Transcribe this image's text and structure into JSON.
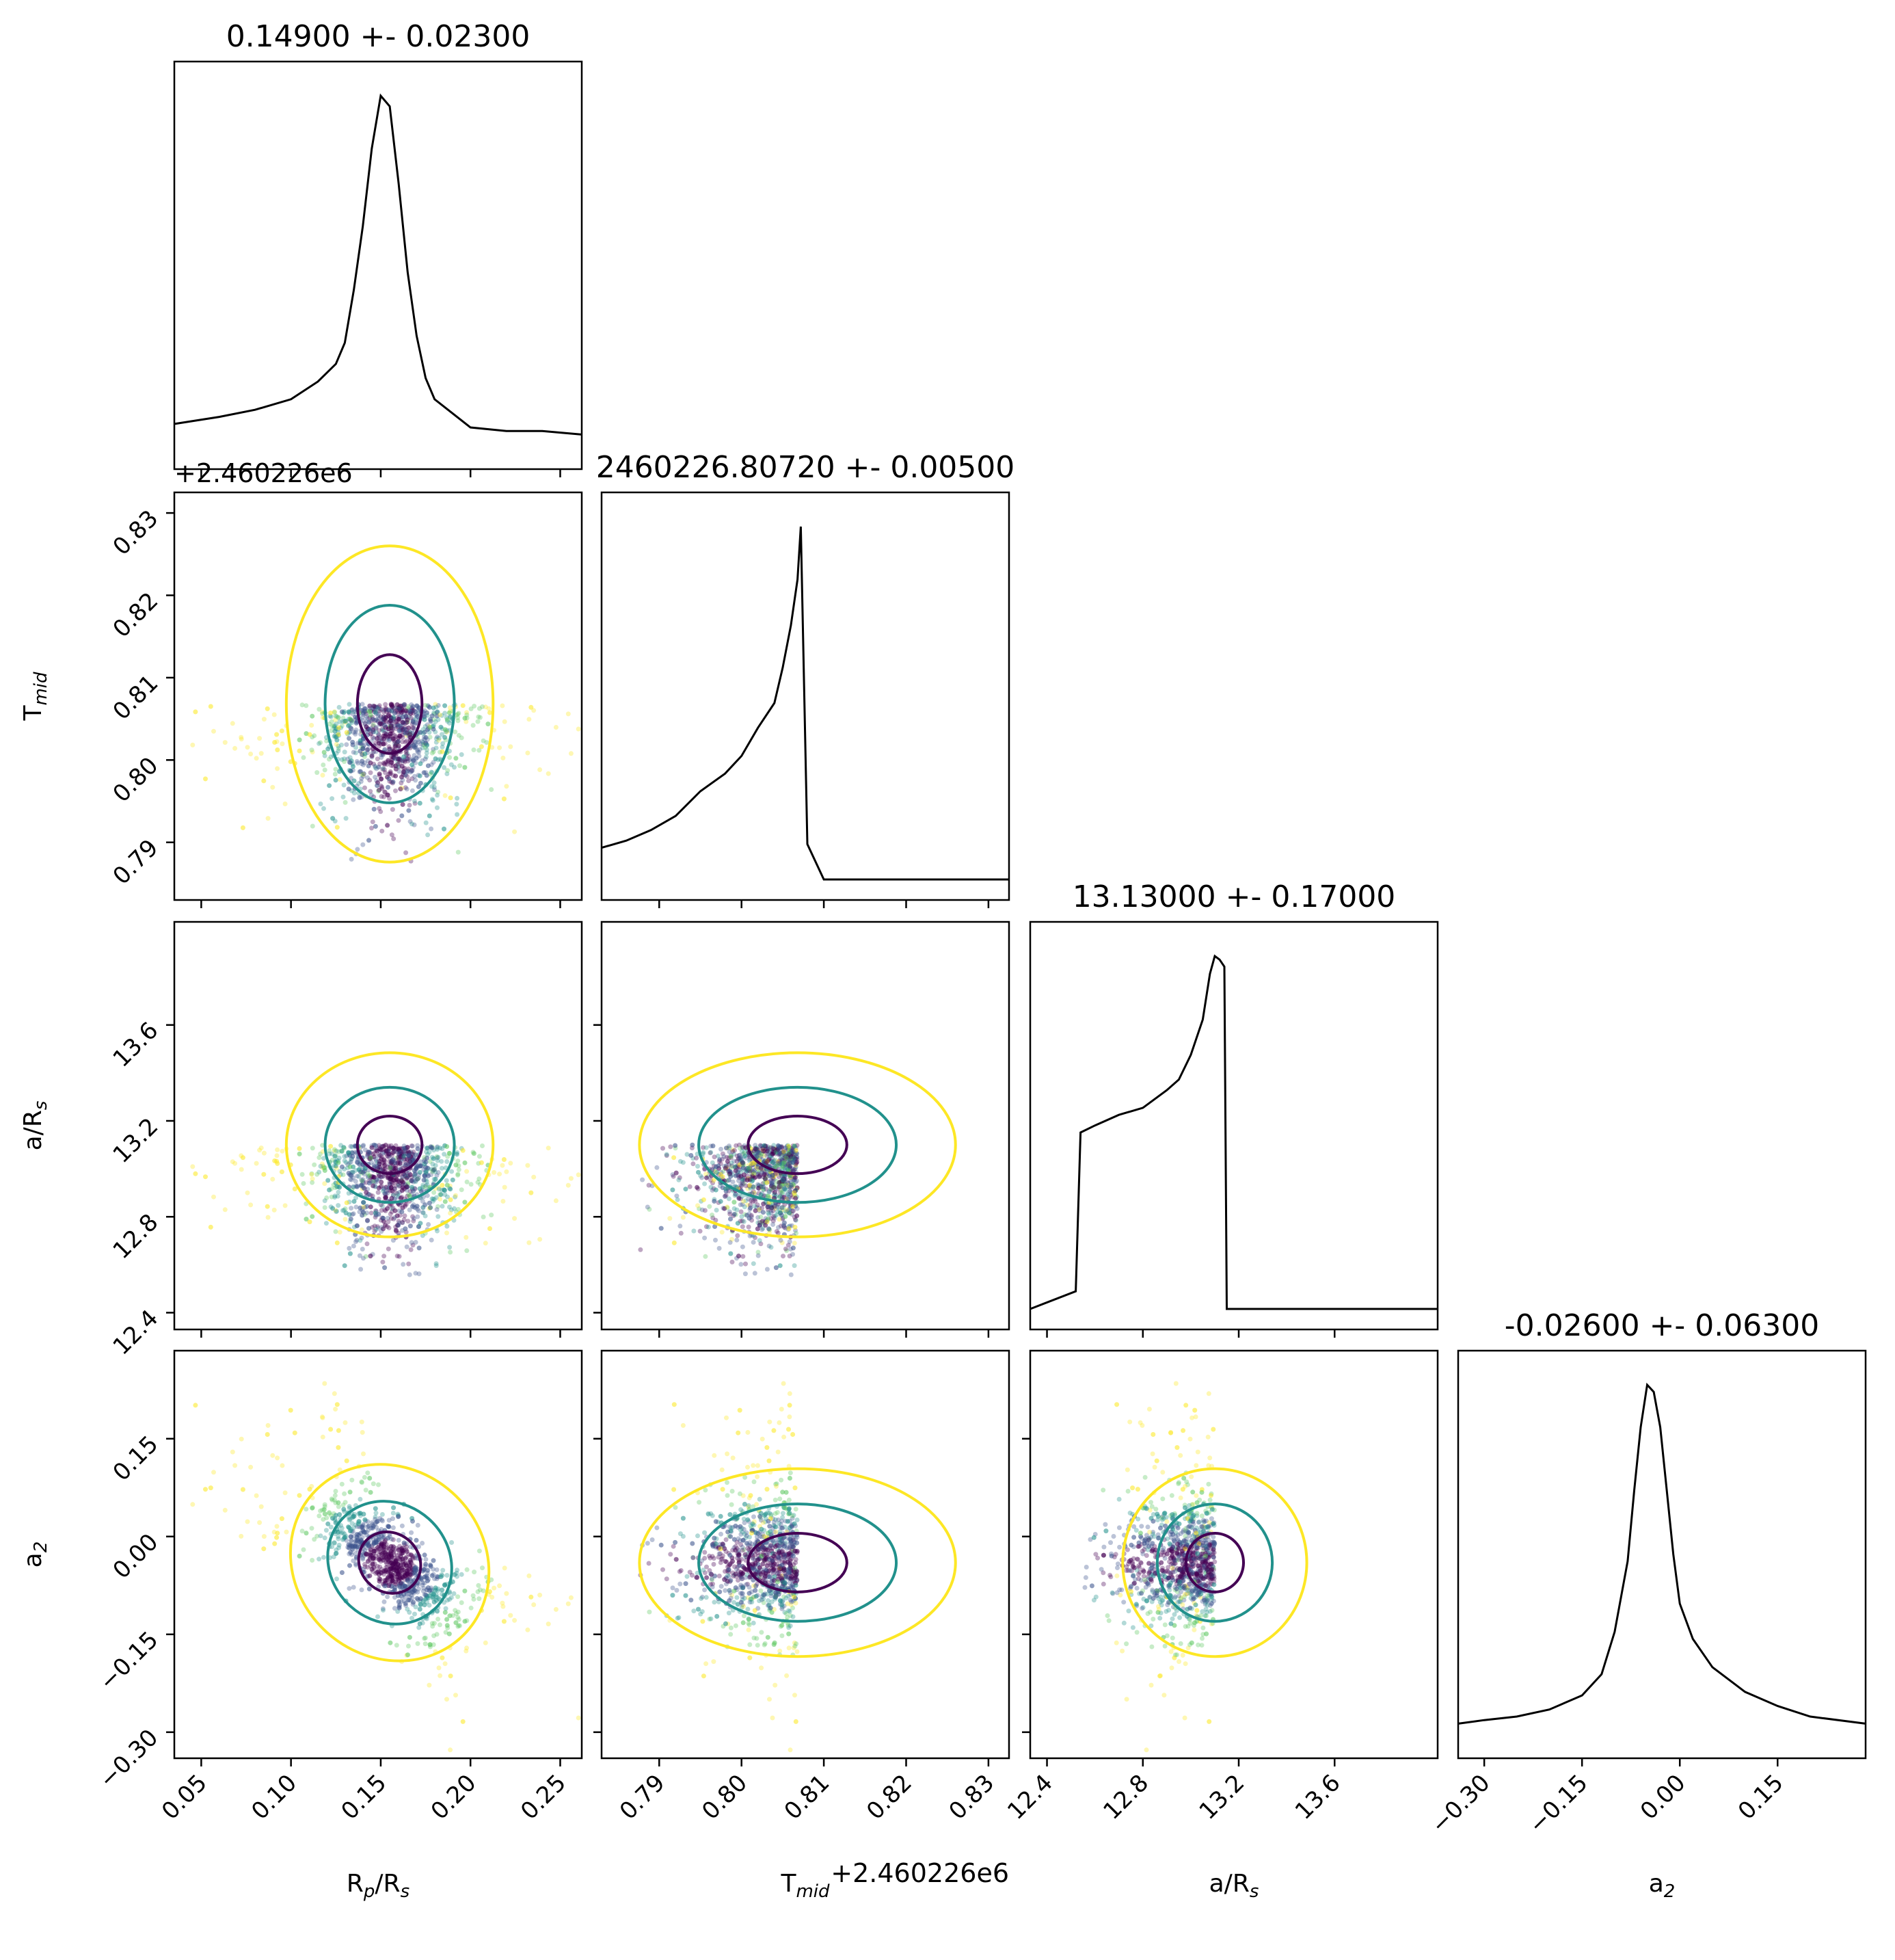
{
  "chart_data": {
    "type": "corner",
    "parameters": [
      {
        "symbol": "R",
        "sub": "p",
        "suffix": "/R",
        "suffix_sub": "s",
        "title": "0.14900 +- 0.02300",
        "range": [
          0.035,
          0.262
        ],
        "ticks": [
          "0.05",
          "0.10",
          "0.15",
          "0.20",
          "0.25"
        ],
        "tick_values": [
          0.05,
          0.1,
          0.15,
          0.2,
          0.25
        ]
      },
      {
        "symbol": "T",
        "sub": "mid",
        "suffix": "",
        "suffix_sub": "",
        "title": "2460226.80720 +- 0.00500",
        "range": [
          0.783,
          0.8325
        ],
        "ticks": [
          "0.79",
          "0.80",
          "0.81",
          "0.82",
          "0.83"
        ],
        "tick_values": [
          0.79,
          0.8,
          0.81,
          0.82,
          0.83
        ],
        "offset_label": "+2.460226e6"
      },
      {
        "symbol": "a/R",
        "sub": "s",
        "suffix": "",
        "suffix_sub": "",
        "title": "13.13000 +- 0.17000",
        "range": [
          12.33,
          14.03
        ],
        "ticks": [
          "12.4",
          "12.8",
          "13.2",
          "13.6"
        ],
        "tick_values": [
          12.4,
          12.8,
          13.2,
          13.6
        ]
      },
      {
        "symbol": "a",
        "sub": "2",
        "suffix": "",
        "suffix_sub": "",
        "title": "-0.02600 +- 0.06300",
        "range": [
          -0.34,
          0.285
        ],
        "ticks": [
          "−0.30",
          "−0.15",
          "0.00",
          "0.15"
        ],
        "tick_values": [
          -0.3,
          -0.15,
          0.0,
          0.15
        ]
      }
    ],
    "histograms": [
      {
        "centers": [
          0.035,
          0.06,
          0.08,
          0.1,
          0.115,
          0.125,
          0.13,
          0.135,
          0.14,
          0.145,
          0.15,
          0.155,
          0.16,
          0.165,
          0.17,
          0.175,
          0.18,
          0.19,
          0.2,
          0.22,
          0.24,
          0.262
        ],
        "heights": [
          0.07,
          0.09,
          0.11,
          0.14,
          0.19,
          0.24,
          0.3,
          0.45,
          0.63,
          0.85,
          1.0,
          0.97,
          0.75,
          0.5,
          0.32,
          0.2,
          0.14,
          0.1,
          0.06,
          0.05,
          0.05,
          0.04
        ]
      },
      {
        "centers": [
          0.783,
          0.786,
          0.789,
          0.792,
          0.795,
          0.798,
          0.8,
          0.802,
          0.804,
          0.805,
          0.806,
          0.8068,
          0.8072,
          0.808,
          0.81,
          0.8325
        ],
        "heights": [
          0.09,
          0.11,
          0.14,
          0.18,
          0.25,
          0.3,
          0.35,
          0.43,
          0.5,
          0.6,
          0.72,
          0.85,
          1.0,
          0.1,
          0.0,
          0.0
        ]
      },
      {
        "centers": [
          12.33,
          12.52,
          12.54,
          12.6,
          12.7,
          12.8,
          12.9,
          12.95,
          13.0,
          13.05,
          13.08,
          13.1,
          13.12,
          13.13,
          13.14,
          13.15,
          14.03
        ],
        "heights": [
          0.0,
          0.05,
          0.5,
          0.52,
          0.55,
          0.57,
          0.62,
          0.65,
          0.72,
          0.82,
          0.95,
          1.0,
          0.99,
          0.98,
          0.97,
          0.0,
          0.0
        ]
      },
      {
        "centers": [
          -0.34,
          -0.3,
          -0.25,
          -0.2,
          -0.15,
          -0.12,
          -0.1,
          -0.08,
          -0.07,
          -0.06,
          -0.05,
          -0.04,
          -0.03,
          -0.02,
          -0.01,
          0.0,
          0.02,
          0.05,
          0.1,
          0.15,
          0.2,
          0.285
        ],
        "heights": [
          0.04,
          0.05,
          0.06,
          0.08,
          0.12,
          0.18,
          0.3,
          0.5,
          0.7,
          0.88,
          1.0,
          0.98,
          0.88,
          0.7,
          0.52,
          0.38,
          0.28,
          0.2,
          0.13,
          0.09,
          0.06,
          0.04
        ]
      }
    ],
    "joint": {
      "means": [
        0.155,
        0.8068,
        13.1,
        -0.04
      ],
      "sigmas": [
        0.018,
        0.006,
        0.12,
        0.045
      ],
      "upper_bounds": [
        null,
        0.8072,
        13.14,
        null
      ],
      "lower_bounds": [
        null,
        null,
        12.55,
        null
      ],
      "correlations": {
        "0-3": -0.85
      }
    },
    "colors": {
      "line": "#000000",
      "contour_inner": "#440154",
      "contour_mid": "#21918c",
      "contour_outer": "#fde725",
      "points": [
        "#440154",
        "#3b528b",
        "#21918c",
        "#5ec962",
        "#fde725"
      ]
    }
  }
}
